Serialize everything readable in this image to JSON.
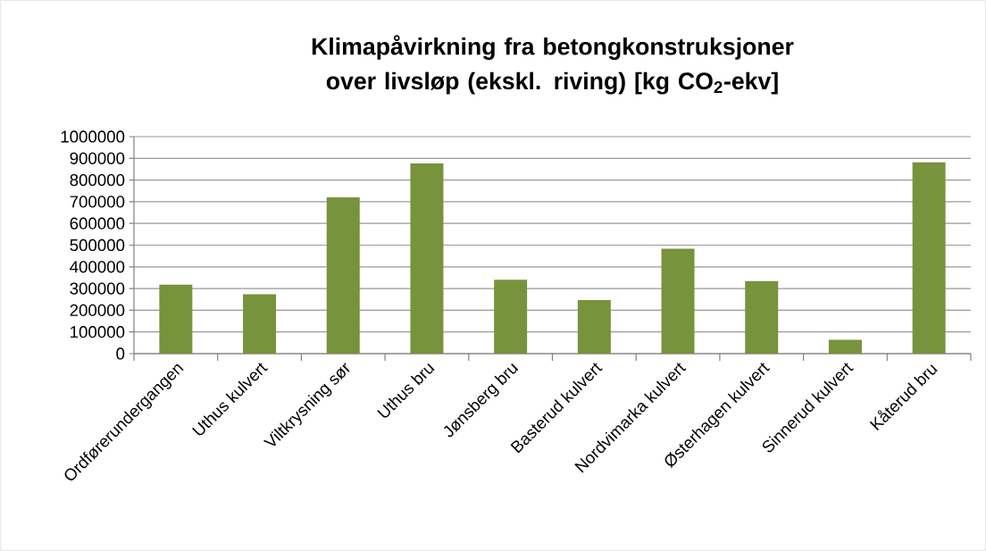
{
  "chart_data": {
    "type": "bar",
    "title": "Klimapåvirkning fra betongkonstruksjoner over livsløp (ekskl. riving) [kg CO$_{2}$-ekv]",
    "categories": [
      "Ordførerundergangen",
      "Uthus kulvert",
      "Viltkrysning sør",
      "Uthus bru",
      "Jønsberg bru",
      "Basterud kulvert",
      "Nordvimarka kulvert",
      "Østerhagen kulvert",
      "Sinnerud kulvert",
      "Kåterud bru"
    ],
    "values": [
      318000,
      274000,
      720000,
      877000,
      340000,
      247000,
      484000,
      334000,
      64000,
      882000
    ],
    "color": "#77933c",
    "ylim": [
      0,
      1000000
    ],
    "yticks": [
      0,
      100000,
      200000,
      300000,
      400000,
      500000,
      600000,
      700000,
      800000,
      900000,
      1000000
    ],
    "grid": "y"
  }
}
